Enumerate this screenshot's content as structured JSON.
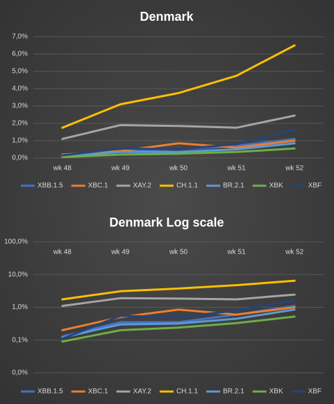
{
  "chart_data": [
    {
      "type": "line",
      "title": "Denmark",
      "categories": [
        "wk 48",
        "wk 49",
        "wk 50",
        "wk 51",
        "wk 52"
      ],
      "ylim": [
        0,
        7
      ],
      "yticks": [
        {
          "value": 0,
          "label": "0,0%"
        },
        {
          "value": 1,
          "label": "1,0%"
        },
        {
          "value": 2,
          "label": "2,0%"
        },
        {
          "value": 3,
          "label": "3,0%"
        },
        {
          "value": 4,
          "label": "4,0%"
        },
        {
          "value": 5,
          "label": "5,0%"
        },
        {
          "value": 6,
          "label": "6,0%"
        },
        {
          "value": 7,
          "label": "7,0%"
        }
      ],
      "grid": true,
      "legend": "bottom",
      "series": [
        {
          "name": "XBB.1.5",
          "color": "#4472c4",
          "values": [
            0.1,
            0.4,
            0.5,
            0.7,
            1.1
          ]
        },
        {
          "name": "XBC.1",
          "color": "#ed7d31",
          "values": [
            0.2,
            0.4,
            0.85,
            0.6,
            1.0
          ]
        },
        {
          "name": "XAY.2",
          "color": "#a5a5a5",
          "values": [
            1.1,
            1.9,
            1.85,
            1.75,
            2.45
          ]
        },
        {
          "name": "CH.1.1",
          "color": "#ffc000",
          "values": [
            1.75,
            3.1,
            3.75,
            4.75,
            6.5
          ]
        },
        {
          "name": "BR.2.1",
          "color": "#5b9bd5",
          "values": [
            0.1,
            0.35,
            0.35,
            0.5,
            0.85
          ]
        },
        {
          "name": "XBK",
          "color": "#70ad47",
          "values": [
            0.05,
            0.2,
            0.25,
            0.35,
            0.55
          ]
        },
        {
          "name": "XBF",
          "color": "#264478",
          "values": [
            0.15,
            0.55,
            0.5,
            0.8,
            1.65
          ]
        }
      ]
    },
    {
      "type": "line",
      "title": "Denmark Log scale",
      "categories": [
        "wk 48",
        "wk 49",
        "wk 50",
        "wk 51",
        "wk 52"
      ],
      "log_scale": true,
      "xaxis_position": "top",
      "ylim": [
        0.01,
        100
      ],
      "yticks": [
        {
          "value": 0.01,
          "label": "0,0%"
        },
        {
          "value": 0.1,
          "label": "0,1%"
        },
        {
          "value": 1,
          "label": "1,0%"
        },
        {
          "value": 10,
          "label": "10,0%"
        },
        {
          "value": 100,
          "label": "100,0%"
        }
      ],
      "grid": true,
      "legend": "bottom",
      "series": [
        {
          "name": "XBB.1.5",
          "color": "#4472c4",
          "values": [
            0.13,
            0.35,
            0.35,
            0.6,
            1.1
          ]
        },
        {
          "name": "XBC.1",
          "color": "#ed7d31",
          "values": [
            0.2,
            0.5,
            0.85,
            0.6,
            1.0
          ]
        },
        {
          "name": "XAY.2",
          "color": "#a5a5a5",
          "values": [
            1.1,
            1.9,
            1.85,
            1.75,
            2.45
          ]
        },
        {
          "name": "CH.1.1",
          "color": "#ffc000",
          "values": [
            1.75,
            3.1,
            3.75,
            4.75,
            6.5
          ]
        },
        {
          "name": "BR.2.1",
          "color": "#5b9bd5",
          "values": [
            0.12,
            0.3,
            0.32,
            0.45,
            0.85
          ]
        },
        {
          "name": "XBK",
          "color": "#70ad47",
          "values": [
            0.09,
            0.2,
            0.24,
            0.33,
            0.52
          ]
        },
        {
          "name": "XBF",
          "color": "#264478",
          "values": [
            0.11,
            0.55,
            0.5,
            0.8,
            1.6
          ]
        }
      ]
    }
  ]
}
